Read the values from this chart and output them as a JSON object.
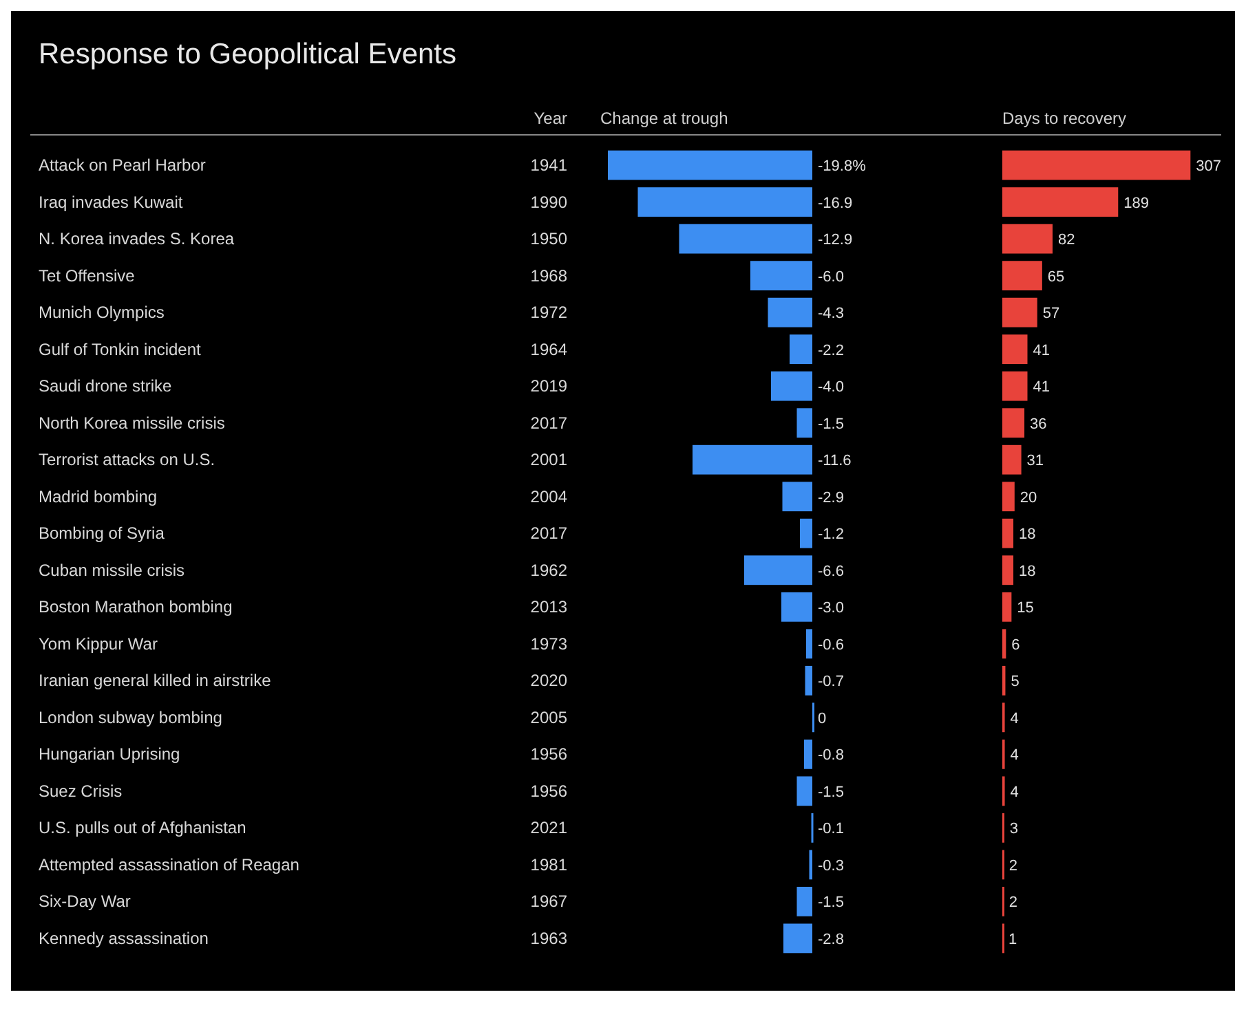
{
  "chart_data": [
    {
      "type": "bar",
      "orientation": "horizontal",
      "title": "Response to Geopolitical Events",
      "xlabel": "Change at trough",
      "y2label": "Year",
      "tick_labels": "y",
      "color": "#3d8ef2",
      "xlim": [
        -20,
        0
      ],
      "categories": [
        "Attack on Pearl Harbor",
        "Iraq invades Kuwait",
        "N. Korea invades S. Korea",
        "Tet Offensive",
        "Munich Olympics",
        "Gulf of Tonkin incident",
        "Saudi drone strike",
        "North Korea missile crisis",
        "Terrorist attacks on U.S.",
        "Madrid bombing",
        "Bombing of Syria",
        "Cuban missile crisis",
        "Boston Marathon bombing",
        "Yom Kippur War",
        "Iranian general killed in airstrike",
        "London subway bombing",
        "Hungarian Uprising",
        "Suez Crisis",
        "U.S. pulls out of Afghanistan",
        "Attempted assassination of Reagan",
        "Six-Day War",
        "Kennedy assassination"
      ],
      "y2_categories": [
        "1941",
        "1990",
        "1950",
        "1968",
        "1972",
        "1964",
        "2019",
        "2017",
        "2001",
        "2004",
        "2017",
        "1962",
        "2013",
        "1973",
        "2020",
        "2005",
        "1956",
        "1956",
        "2021",
        "1981",
        "1967",
        "1963"
      ],
      "values": [
        -19.8,
        -16.9,
        -12.9,
        -6.0,
        -4.3,
        -2.2,
        -4.0,
        -1.5,
        -11.6,
        -2.9,
        -1.2,
        -6.6,
        -3.0,
        -0.6,
        -0.7,
        0,
        -0.8,
        -1.5,
        -0.1,
        -0.3,
        -1.5,
        -2.8
      ],
      "value_labels": [
        "-19.8%",
        "-16.9",
        "-12.9",
        "-6.0",
        "-4.3",
        "-2.2",
        "-4.0",
        "-1.5",
        "-11.6",
        "-2.9",
        "-1.2",
        "-6.6",
        "-3.0",
        "-0.6",
        "-0.7",
        "0",
        "-0.8",
        "-1.5",
        "-0.1",
        "-0.3",
        "-1.5",
        "-2.8"
      ]
    },
    {
      "type": "bar",
      "orientation": "horizontal",
      "xlabel": "Days to recovery",
      "tick_labels": false,
      "color": "#e8433b",
      "xlim": [
        0,
        310
      ],
      "data_labels": true,
      "categories": [
        null,
        null,
        null,
        null,
        null,
        null,
        null,
        null,
        null,
        null,
        null,
        null,
        null,
        null,
        null,
        null,
        null,
        null,
        null,
        null,
        null,
        null
      ],
      "values": [
        307,
        189,
        82,
        65,
        57,
        41,
        41,
        36,
        31,
        20,
        18,
        18,
        15,
        6,
        5,
        4,
        4,
        4,
        3,
        2,
        2,
        1
      ]
    }
  ]
}
